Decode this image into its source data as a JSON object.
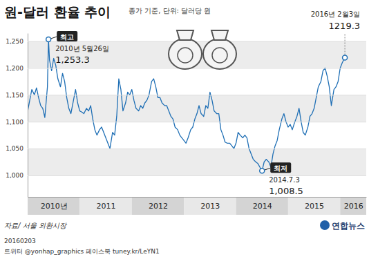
{
  "chart_data": {
    "type": "line",
    "title": "원-달러 환율 추이",
    "subtitle": "종가 기준, 단위: 달러당 원",
    "color": "#1f6fb5",
    "grid": true,
    "xlim": [
      2010,
      2016.5
    ],
    "xticks": [
      {
        "value": 2010.5,
        "label": "2010년"
      },
      {
        "value": 2011.5,
        "label": "2011"
      },
      {
        "value": 2012.5,
        "label": "2012"
      },
      {
        "value": 2013.5,
        "label": "2013"
      },
      {
        "value": 2014.5,
        "label": "2014"
      },
      {
        "value": 2015.5,
        "label": "2015"
      },
      {
        "value": 2016.25,
        "label": "2016"
      }
    ],
    "ylim": [
      960,
      1265
    ],
    "yticks": [
      {
        "value": 1000,
        "label": "1,000"
      },
      {
        "value": 1050,
        "label": "1,050"
      },
      {
        "value": 1100,
        "label": "1,100"
      },
      {
        "value": 1150,
        "label": "1,150"
      },
      {
        "value": 1200,
        "label": "1,200"
      },
      {
        "value": 1250,
        "label": "1,250"
      }
    ],
    "x": [
      2010.0,
      2010.04,
      2010.08,
      2010.13,
      2010.17,
      2010.21,
      2010.25,
      2010.29,
      2010.33,
      2010.38,
      2010.4,
      2010.42,
      2010.46,
      2010.5,
      2010.54,
      2010.58,
      2010.63,
      2010.67,
      2010.71,
      2010.75,
      2010.79,
      2010.83,
      2010.88,
      2010.92,
      2010.96,
      2011.0,
      2011.04,
      2011.08,
      2011.13,
      2011.17,
      2011.21,
      2011.25,
      2011.29,
      2011.33,
      2011.38,
      2011.42,
      2011.46,
      2011.5,
      2011.54,
      2011.58,
      2011.63,
      2011.67,
      2011.71,
      2011.75,
      2011.79,
      2011.83,
      2011.88,
      2011.92,
      2011.96,
      2012.0,
      2012.04,
      2012.08,
      2012.13,
      2012.17,
      2012.21,
      2012.25,
      2012.29,
      2012.33,
      2012.38,
      2012.42,
      2012.46,
      2012.5,
      2012.54,
      2012.58,
      2012.63,
      2012.67,
      2012.71,
      2012.75,
      2012.79,
      2012.83,
      2012.88,
      2012.92,
      2012.96,
      2013.0,
      2013.04,
      2013.08,
      2013.13,
      2013.17,
      2013.21,
      2013.25,
      2013.29,
      2013.33,
      2013.38,
      2013.42,
      2013.46,
      2013.5,
      2013.54,
      2013.58,
      2013.63,
      2013.67,
      2013.71,
      2013.75,
      2013.79,
      2013.83,
      2013.88,
      2013.92,
      2013.96,
      2014.0,
      2014.04,
      2014.08,
      2014.13,
      2014.17,
      2014.21,
      2014.25,
      2014.29,
      2014.33,
      2014.38,
      2014.42,
      2014.46,
      2014.5,
      2014.54,
      2014.58,
      2014.63,
      2014.67,
      2014.71,
      2014.75,
      2014.79,
      2014.83,
      2014.88,
      2014.92,
      2014.96,
      2015.0,
      2015.04,
      2015.08,
      2015.13,
      2015.17,
      2015.21,
      2015.25,
      2015.29,
      2015.33,
      2015.38,
      2015.42,
      2015.46,
      2015.5,
      2015.54,
      2015.58,
      2015.63,
      2015.67,
      2015.71,
      2015.75,
      2015.79,
      2015.83,
      2015.88,
      2015.92,
      2015.96,
      2016.0,
      2016.04,
      2016.09
    ],
    "values": [
      1119,
      1140,
      1160,
      1150,
      1163,
      1145,
      1130,
      1125,
      1108,
      1165,
      1253.3,
      1215,
      1195,
      1218,
      1205,
      1180,
      1165,
      1190,
      1175,
      1145,
      1125,
      1115,
      1140,
      1160,
      1135,
      1120,
      1118,
      1115,
      1125,
      1120,
      1130,
      1105,
      1085,
      1075,
      1085,
      1090,
      1080,
      1070,
      1060,
      1050,
      1080,
      1075,
      1110,
      1180,
      1160,
      1120,
      1135,
      1155,
      1150,
      1160,
      1140,
      1125,
      1120,
      1130,
      1125,
      1135,
      1140,
      1150,
      1175,
      1180,
      1165,
      1145,
      1145,
      1135,
      1130,
      1130,
      1120,
      1110,
      1105,
      1090,
      1085,
      1075,
      1070,
      1065,
      1060,
      1070,
      1085,
      1090,
      1105,
      1115,
      1130,
      1115,
      1110,
      1130,
      1125,
      1155,
      1140,
      1120,
      1115,
      1115,
      1085,
      1075,
      1062,
      1060,
      1060,
      1055,
      1050,
      1060,
      1080,
      1075,
      1070,
      1075,
      1070,
      1050,
      1040,
      1030,
      1025,
      1022,
      1015,
      1008.5,
      1025,
      1030,
      1025,
      1015,
      1040,
      1055,
      1065,
      1085,
      1105,
      1115,
      1100,
      1090,
      1095,
      1085,
      1100,
      1110,
      1125,
      1100,
      1080,
      1075,
      1090,
      1110,
      1115,
      1125,
      1145,
      1165,
      1175,
      1195,
      1200,
      1185,
      1165,
      1130,
      1160,
      1165,
      1175,
      1200,
      1210,
      1219.3
    ],
    "annotations": [
      {
        "label": "최고",
        "date": "2010년 5월26일",
        "x": 2010.4,
        "value": 1253.3,
        "value_label": "1,253.3"
      },
      {
        "label": "최저",
        "date": "2014.7.3",
        "x": 2014.5,
        "value": 1008.5,
        "value_label": "1,008.5"
      },
      {
        "date": "2016년 2월3일",
        "x": 2016.09,
        "value": 1219.3,
        "value_label": "1219.3"
      }
    ],
    "source": "자료/ 서울 외환시장",
    "credits": [
      "20160203",
      "트위터 @yonhap_graphics  페이스북 tuney.kr/LeYN1"
    ],
    "logo": "연합뉴스"
  }
}
